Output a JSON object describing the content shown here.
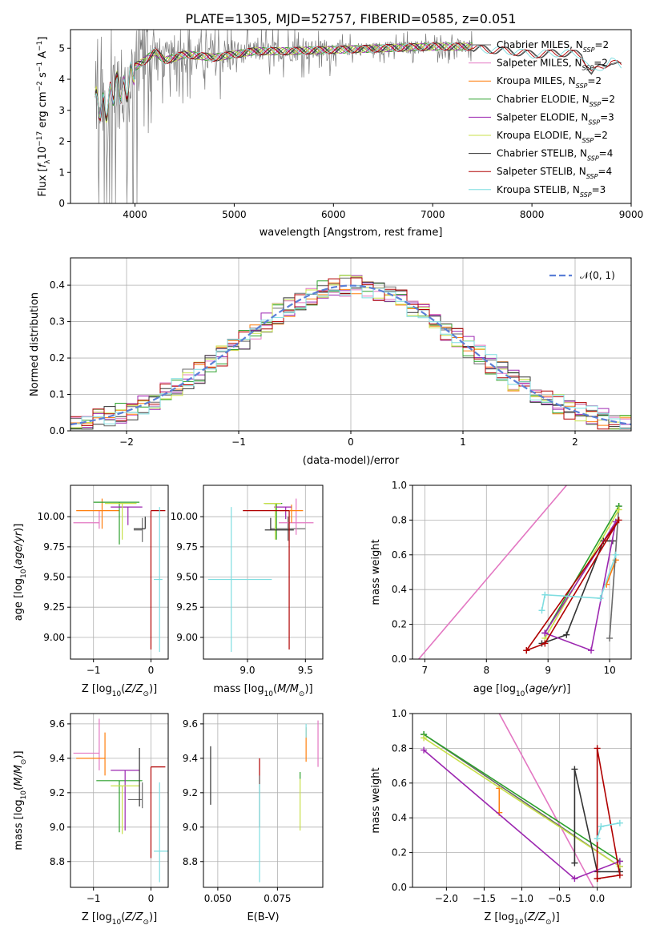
{
  "figure_title": "PLATE=1305, MJD=52757, FIBERID=0585, z=0.051",
  "colors": {
    "Chabrier MILES": "#6a6a6a",
    "Salpeter MILES": "#e377c2",
    "Kroupa MILES": "#ff7f0e",
    "Chabrier ELODIE": "#2ca02c",
    "Salpeter ELODIE": "#9c27b0",
    "Kroupa ELODIE": "#c8e04a",
    "Chabrier STELIB": "#333333",
    "Salpeter STELIB": "#b00000",
    "Kroupa STELIB": "#7fdde0",
    "gauss": "#5b7fd6",
    "data": "#7a7a7a"
  },
  "chart_data": [
    {
      "id": "spectrum",
      "type": "line",
      "xlabel": "wavelength [Angstrom, rest frame]",
      "ylabel": "Flux [f_λ10^-17 erg cm^-2 s^-1 A^-1]",
      "xlim": [
        3350,
        9000
      ],
      "ylim": [
        0,
        5.6
      ],
      "xticks": [
        4000,
        5000,
        6000,
        7000,
        8000,
        9000
      ],
      "yticks": [
        0,
        1,
        2,
        3,
        4,
        5
      ],
      "legend": {
        "position": "lower-right",
        "entries": [
          {
            "model": "Chabrier MILES",
            "label": "Chabrier MILES, N",
            "sub": "SSP",
            "tail": "=2"
          },
          {
            "model": "Salpeter MILES",
            "label": "Salpeter MILES, N",
            "sub": "SSP",
            "tail": "=2"
          },
          {
            "model": "Kroupa MILES",
            "label": "Kroupa MILES, N",
            "sub": "SSP",
            "tail": "=2"
          },
          {
            "model": "Chabrier ELODIE",
            "label": "Chabrier ELODIE, N",
            "sub": "SSP",
            "tail": "=2"
          },
          {
            "model": "Salpeter ELODIE",
            "label": "Salpeter ELODIE, N",
            "sub": "SSP",
            "tail": "=3"
          },
          {
            "model": "Kroupa ELODIE",
            "label": "Kroupa ELODIE, N",
            "sub": "SSP",
            "tail": "=2"
          },
          {
            "model": "Chabrier STELIB",
            "label": "Chabrier STELIB, N",
            "sub": "SSP",
            "tail": "=4"
          },
          {
            "model": "Salpeter STELIB",
            "label": "Salpeter STELIB, N",
            "sub": "SSP",
            "tail": "=4"
          },
          {
            "model": "Kroupa STELIB",
            "label": "Kroupa STELIB, N",
            "sub": "SSP",
            "tail": "=3"
          }
        ]
      },
      "continuum": {
        "x": [
          3600,
          3700,
          3800,
          3900,
          4000,
          4100,
          4200,
          4300,
          4500,
          4800,
          5000,
          5200,
          5500,
          6000,
          6500,
          7000,
          7400
        ],
        "y": [
          3.3,
          3.0,
          3.8,
          3.6,
          4.4,
          4.6,
          4.9,
          4.6,
          4.8,
          4.7,
          4.8,
          4.9,
          4.9,
          4.95,
          5.0,
          5.05,
          5.05
        ]
      },
      "model_extension": {
        "x": [
          7400,
          7800,
          8000,
          8300,
          8500,
          8600,
          8800,
          8900
        ],
        "y": [
          5.0,
          4.9,
          4.8,
          4.85,
          4.8,
          4.2,
          4.6,
          4.4
        ]
      }
    },
    {
      "id": "residuals",
      "type": "area",
      "xlabel": "(data-model)/error",
      "ylabel": "Normed distribution",
      "xlim": [
        -2.5,
        2.5
      ],
      "ylim": [
        0,
        0.475
      ],
      "xticks": [
        -2,
        -1,
        0,
        1,
        2
      ],
      "yticks": [
        0.0,
        0.1,
        0.2,
        0.3,
        0.4
      ],
      "legend": {
        "position": "top-right",
        "label": "𝒩(0, 1)"
      },
      "gaussian": {
        "mean": 0,
        "sigma": 1
      }
    },
    {
      "id": "age-vs-Z",
      "type": "scatter",
      "xlabel": "Z [log10(Z/Z⊙)]",
      "ylabel": "age [log10(age/yr)]",
      "xlim": [
        -1.4,
        0.3
      ],
      "ylim": [
        8.82,
        10.26
      ],
      "xticks": [
        -1,
        0
      ],
      "yticks": [
        9.0,
        9.25,
        9.5,
        9.75,
        10.0
      ],
      "points": [
        {
          "model": "Chabrier MILES",
          "x": -0.15,
          "y": 9.89,
          "xerr": [
            0.15,
            0.0
          ],
          "yerr": [
            0.1,
            0.1
          ]
        },
        {
          "model": "Salpeter MILES",
          "x": -0.9,
          "y": 9.95,
          "xerr": [
            0.45,
            0.0
          ],
          "yerr": [
            0.05,
            0.1
          ]
        },
        {
          "model": "Kroupa MILES",
          "x": -0.85,
          "y": 10.05,
          "xerr": [
            0.45,
            0.3
          ],
          "yerr": [
            0.15,
            0.1
          ]
        },
        {
          "model": "Chabrier ELODIE",
          "x": -0.55,
          "y": 10.12,
          "xerr": [
            0.45,
            0.35
          ],
          "yerr": [
            0.35,
            0.0
          ]
        },
        {
          "model": "Salpeter ELODIE",
          "x": -0.4,
          "y": 10.08,
          "xerr": [
            0.3,
            0.25
          ],
          "yerr": [
            0.15,
            0.0
          ]
        },
        {
          "model": "Kroupa ELODIE",
          "x": -0.5,
          "y": 10.11,
          "xerr": [
            0.3,
            0.25
          ],
          "yerr": [
            0.3,
            0.0
          ]
        },
        {
          "model": "Chabrier STELIB",
          "x": -0.1,
          "y": 9.9,
          "xerr": [
            0.2,
            0.0
          ],
          "yerr": [
            0.0,
            0.1
          ]
        },
        {
          "model": "Salpeter STELIB",
          "x": 0.0,
          "y": 10.05,
          "xerr": [
            0.0,
            0.25
          ],
          "yerr": [
            1.15,
            0.0
          ]
        },
        {
          "model": "Kroupa STELIB",
          "x": 0.15,
          "y": 9.48,
          "xerr": [
            0.1,
            0.05
          ],
          "yerr": [
            0.6,
            0.6
          ]
        }
      ]
    },
    {
      "id": "age-vs-mass",
      "type": "scatter",
      "xlabel": "mass [log10(M/M⊙)]",
      "ylabel": "",
      "xlim": [
        8.62,
        9.65
      ],
      "ylim": [
        8.82,
        10.26
      ],
      "xticks": [
        9.0,
        9.5
      ],
      "yticks": [
        9.0,
        9.25,
        9.5,
        9.75,
        10.0
      ],
      "points": [
        {
          "model": "Chabrier MILES",
          "x": 9.35,
          "y": 9.9,
          "xerr": [
            0.15,
            0.15
          ],
          "yerr": [
            0.1,
            0.1
          ]
        },
        {
          "model": "Salpeter MILES",
          "x": 9.42,
          "y": 9.95,
          "xerr": [
            0.15,
            0.15
          ],
          "yerr": [
            0.1,
            0.2
          ]
        },
        {
          "model": "Kroupa MILES",
          "x": 9.38,
          "y": 10.05,
          "xerr": [
            0.1,
            0.1
          ],
          "yerr": [
            0.1,
            0.05
          ]
        },
        {
          "model": "Chabrier ELODIE",
          "x": 9.25,
          "y": 10.11,
          "xerr": [
            0.1,
            0.05
          ],
          "yerr": [
            0.3,
            0.0
          ]
        },
        {
          "model": "Salpeter ELODIE",
          "x": 9.33,
          "y": 10.08,
          "xerr": [
            0.1,
            0.05
          ],
          "yerr": [
            0.1,
            0.0
          ]
        },
        {
          "model": "Kroupa ELODIE",
          "x": 9.24,
          "y": 10.11,
          "xerr": [
            0.1,
            0.05
          ],
          "yerr": [
            0.3,
            0.0
          ]
        },
        {
          "model": "Chabrier STELIB",
          "x": 9.2,
          "y": 9.89,
          "xerr": [
            0.05,
            0.2
          ],
          "yerr": [
            0.0,
            0.1
          ]
        },
        {
          "model": "Salpeter STELIB",
          "x": 9.36,
          "y": 10.05,
          "xerr": [
            0.4,
            0.0
          ],
          "yerr": [
            1.15,
            0.0
          ]
        },
        {
          "model": "Kroupa STELIB",
          "x": 8.86,
          "y": 9.48,
          "xerr": [
            0.2,
            0.35
          ],
          "yerr": [
            0.6,
            0.6
          ]
        }
      ]
    },
    {
      "id": "massweight-vs-age",
      "type": "line",
      "xlabel": "age [log10(age/yr)]",
      "ylabel": "mass weight",
      "xlim": [
        6.8,
        10.35
      ],
      "ylim": [
        0.0,
        1.0
      ],
      "xticks": [
        7,
        8,
        9,
        10
      ],
      "yticks": [
        0.0,
        0.2,
        0.4,
        0.6,
        0.8,
        1.0
      ],
      "series": [
        {
          "model": "Salpeter MILES",
          "x": [
            6.9,
            9.3
          ],
          "y": [
            0.0,
            1.0
          ]
        },
        {
          "model": "Kroupa MILES",
          "x": [
            9.95,
            10.1
          ],
          "y": [
            0.43,
            0.57
          ]
        },
        {
          "model": "Chabrier MILES",
          "x": [
            10.0,
            10.15
          ],
          "y": [
            0.12,
            0.88
          ]
        },
        {
          "model": "Chabrier ELODIE",
          "x": [
            8.95,
            10.15
          ],
          "y": [
            0.15,
            0.88
          ]
        },
        {
          "model": "Kroupa ELODIE",
          "x": [
            8.95,
            10.15
          ],
          "y": [
            0.12,
            0.86
          ]
        },
        {
          "model": "Chabrier STELIB",
          "x": [
            8.9,
            9.3,
            9.9,
            10.05
          ],
          "y": [
            0.09,
            0.14,
            0.68,
            0.68
          ]
        },
        {
          "model": "Salpeter ELODIE",
          "x": [
            8.95,
            9.7,
            10.1,
            8.95
          ],
          "y": [
            0.15,
            0.05,
            0.79,
            0.15
          ]
        },
        {
          "model": "Salpeter STELIB",
          "x": [
            8.65,
            8.95,
            10.15,
            8.65
          ],
          "y": [
            0.05,
            0.09,
            0.8,
            0.05
          ]
        },
        {
          "model": "Kroupa STELIB",
          "x": [
            8.9,
            8.95,
            9.85,
            10.1
          ],
          "y": [
            0.28,
            0.37,
            0.35,
            0.6
          ]
        }
      ]
    },
    {
      "id": "mass-vs-Z",
      "type": "scatter",
      "xlabel": "Z [log10(Z/Z⊙)]",
      "ylabel": "mass [log10(M/M⊙)]",
      "xlim": [
        -1.4,
        0.3
      ],
      "ylim": [
        8.65,
        9.66
      ],
      "xticks": [
        -1,
        0
      ],
      "yticks": [
        8.8,
        9.0,
        9.2,
        9.4,
        9.6
      ],
      "points": [
        {
          "model": "Chabrier MILES",
          "x": -0.15,
          "y": 9.16,
          "xerr": [
            0.25,
            0.0
          ],
          "yerr": [
            0.05,
            0.1
          ]
        },
        {
          "model": "Salpeter MILES",
          "x": -0.9,
          "y": 9.43,
          "xerr": [
            0.45,
            0.0
          ],
          "yerr": [
            0.1,
            0.2
          ]
        },
        {
          "model": "Kroupa MILES",
          "x": -0.8,
          "y": 9.4,
          "xerr": [
            0.5,
            0.0
          ],
          "yerr": [
            0.1,
            0.15
          ]
        },
        {
          "model": "Chabrier ELODIE",
          "x": -0.55,
          "y": 9.27,
          "xerr": [
            0.4,
            0.4
          ],
          "yerr": [
            0.3,
            0.0
          ]
        },
        {
          "model": "Salpeter ELODIE",
          "x": -0.45,
          "y": 9.33,
          "xerr": [
            0.25,
            0.25
          ],
          "yerr": [
            0.35,
            0.0
          ]
        },
        {
          "model": "Kroupa ELODIE",
          "x": -0.5,
          "y": 9.24,
          "xerr": [
            0.2,
            0.3
          ],
          "yerr": [
            0.28,
            0.0
          ]
        },
        {
          "model": "Chabrier STELIB",
          "x": -0.2,
          "y": 9.16,
          "xerr": [
            0.0,
            0.0
          ],
          "yerr": [
            0.04,
            0.3
          ]
        },
        {
          "model": "Salpeter STELIB",
          "x": 0.0,
          "y": 9.35,
          "xerr": [
            0.0,
            0.25
          ],
          "yerr": [
            0.53,
            0.0
          ]
        },
        {
          "model": "Kroupa STELIB",
          "x": 0.15,
          "y": 8.86,
          "xerr": [
            0.1,
            0.15
          ],
          "yerr": [
            0.18,
            0.4
          ]
        }
      ]
    },
    {
      "id": "mass-vs-EBV",
      "type": "scatter",
      "xlabel": "E(B-V)",
      "ylabel": "",
      "xlim": [
        0.044,
        0.094
      ],
      "ylim": [
        8.65,
        9.66
      ],
      "xticks": [
        0.05,
        0.075
      ],
      "yticks": [
        8.8,
        9.0,
        9.2,
        9.4,
        9.6
      ],
      "points": [
        {
          "model": "Chabrier STELIB",
          "x": 0.047,
          "y": 9.3,
          "xerr": [
            0,
            0
          ],
          "yerr": [
            0.17,
            0.17
          ]
        },
        {
          "model": "Salpeter STELIB",
          "x": 0.0675,
          "y": 9.25,
          "xerr": [
            0,
            0
          ],
          "yerr": [
            0.0,
            0.15
          ]
        },
        {
          "model": "Chabrier MILES",
          "x": 0.0675,
          "y": 9.15,
          "xerr": [
            0,
            0
          ],
          "yerr": [
            0.15,
            0.15
          ]
        },
        {
          "model": "Kroupa STELIB",
          "x": 0.0675,
          "y": 8.95,
          "xerr": [
            0,
            0
          ],
          "yerr": [
            0.27,
            0.3
          ]
        },
        {
          "model": "Chabrier ELODIE",
          "x": 0.0845,
          "y": 9.3,
          "xerr": [
            0,
            0
          ],
          "yerr": [
            0.02,
            0.02
          ]
        },
        {
          "model": "Kroupa ELODIE",
          "x": 0.0845,
          "y": 9.13,
          "xerr": [
            0,
            0
          ],
          "yerr": [
            0.15,
            0.15
          ]
        },
        {
          "model": "Kroupa MILES",
          "x": 0.087,
          "y": 9.48,
          "xerr": [
            0,
            0
          ],
          "yerr": [
            0.1,
            0.1
          ]
        },
        {
          "model": "Kroupa STELIB",
          "x": 0.087,
          "y": 9.55,
          "xerr": [
            0,
            0
          ],
          "yerr": [
            0.03,
            0.05
          ]
        },
        {
          "model": "Salpeter MILES",
          "x": 0.092,
          "y": 9.48,
          "xerr": [
            0,
            0
          ],
          "yerr": [
            0.13,
            0.14
          ]
        }
      ]
    },
    {
      "id": "massweight-vs-Z",
      "type": "line",
      "xlabel": "Z [log10(Z/Z⊙)]",
      "ylabel": "mass weight",
      "xlim": [
        -2.45,
        0.45
      ],
      "ylim": [
        0.0,
        1.0
      ],
      "xticks": [
        -2.0,
        -1.5,
        -1.0,
        -0.5,
        0.0
      ],
      "yticks": [
        0.0,
        0.2,
        0.4,
        0.6,
        0.8,
        1.0
      ],
      "series": [
        {
          "model": "Salpeter MILES",
          "x": [
            -1.3,
            -0.05
          ],
          "y": [
            1.0,
            0.0
          ]
        },
        {
          "model": "Kroupa MILES",
          "x": [
            -1.3,
            -1.3
          ],
          "y": [
            0.43,
            0.57
          ]
        },
        {
          "model": "Chabrier MILES",
          "x": [
            -2.3,
            0.3
          ],
          "y": [
            0.88,
            0.12
          ]
        },
        {
          "model": "Chabrier ELODIE",
          "x": [
            -2.3,
            0.3
          ],
          "y": [
            0.88,
            0.15
          ]
        },
        {
          "model": "Kroupa ELODIE",
          "x": [
            -2.3,
            0.3
          ],
          "y": [
            0.86,
            0.12
          ]
        },
        {
          "model": "Chabrier STELIB",
          "x": [
            -0.3,
            -0.3,
            0.0,
            0.3
          ],
          "y": [
            0.14,
            0.68,
            0.09,
            0.09
          ]
        },
        {
          "model": "Salpeter ELODIE",
          "x": [
            -2.3,
            -0.3,
            0.3
          ],
          "y": [
            0.79,
            0.05,
            0.15
          ]
        },
        {
          "model": "Salpeter STELIB",
          "x": [
            0.0,
            0.0,
            0.3,
            0.0
          ],
          "y": [
            0.05,
            0.8,
            0.07,
            0.05
          ]
        },
        {
          "model": "Kroupa STELIB",
          "x": [
            0.0,
            0.05,
            0.3
          ],
          "y": [
            0.28,
            0.35,
            0.37
          ]
        }
      ]
    }
  ]
}
